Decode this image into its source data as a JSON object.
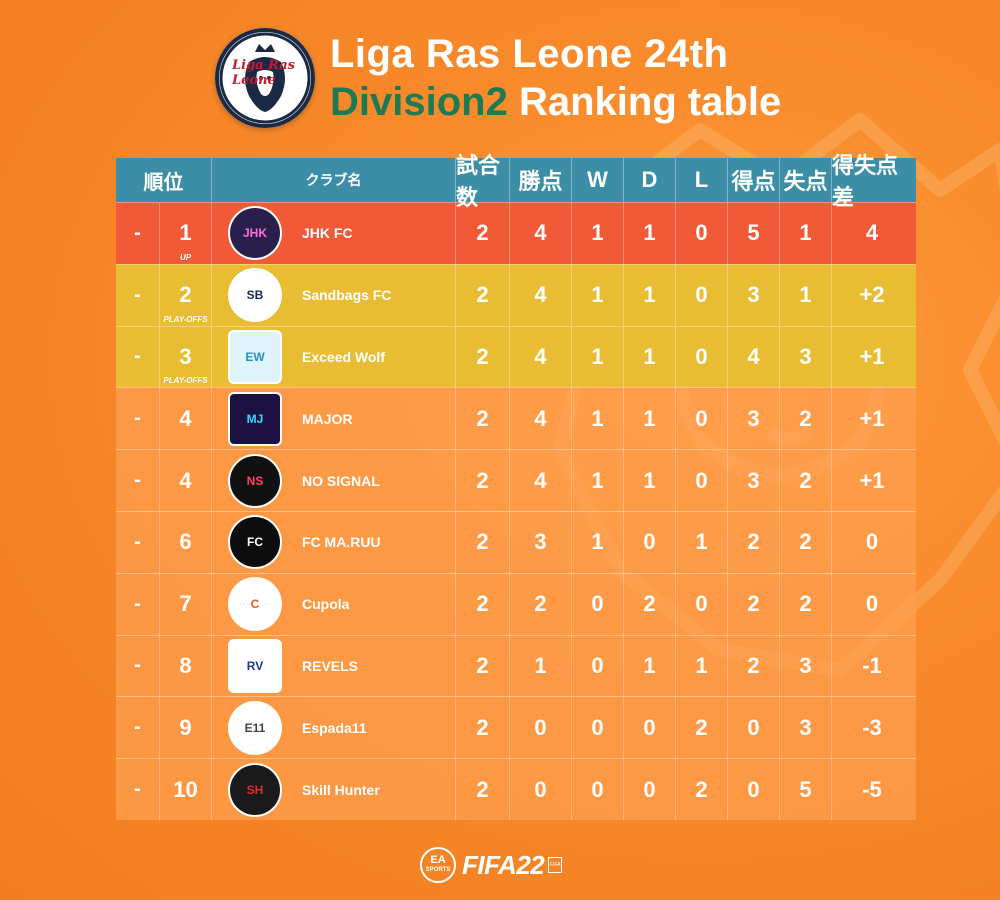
{
  "header": {
    "logo_text": "Liga Ras Leone",
    "title_line1": "Liga Ras Leone 24th",
    "title_line2_accent": "Division2",
    "title_line2_rest": " Ranking table"
  },
  "colors": {
    "background": "#f7892a",
    "header_row": "#3b8ea5",
    "promotion_row": "#f05a36",
    "playoff_row": "#e9bd33",
    "accent_title": "#1e7a53"
  },
  "columns": {
    "rank": "順位",
    "club": "クラブ名",
    "played": "試合数",
    "points": "勝点",
    "w": "W",
    "d": "D",
    "l": "L",
    "gf": "得点",
    "ga": "失点",
    "gd": "得失点差"
  },
  "rows": [
    {
      "move": "-",
      "rank": "1",
      "tag": "UP",
      "badge_icon": "jhk-fc-crest-icon",
      "club": "JHK FC",
      "played": "2",
      "points": "4",
      "w": "1",
      "d": "1",
      "l": "0",
      "gf": "5",
      "ga": "1",
      "gd": "4",
      "zone": "promotion"
    },
    {
      "move": "-",
      "rank": "2",
      "tag": "PLAY-OFFS",
      "badge_icon": "sandbags-fc-crest-icon",
      "club": "Sandbags FC",
      "played": "2",
      "points": "4",
      "w": "1",
      "d": "1",
      "l": "0",
      "gf": "3",
      "ga": "1",
      "gd": "+2",
      "zone": "playoff"
    },
    {
      "move": "-",
      "rank": "3",
      "tag": "PLAY-OFFS",
      "badge_icon": "exceed-wolf-crest-icon",
      "club": "Exceed Wolf",
      "played": "2",
      "points": "4",
      "w": "1",
      "d": "1",
      "l": "0",
      "gf": "4",
      "ga": "3",
      "gd": "+1",
      "zone": "playoff"
    },
    {
      "move": "-",
      "rank": "4",
      "tag": "",
      "badge_icon": "major-crest-icon",
      "club": "MAJOR",
      "played": "2",
      "points": "4",
      "w": "1",
      "d": "1",
      "l": "0",
      "gf": "3",
      "ga": "2",
      "gd": "+1",
      "zone": "normal"
    },
    {
      "move": "-",
      "rank": "4",
      "tag": "",
      "badge_icon": "no-signal-crest-icon",
      "club": "NO SIGNAL",
      "played": "2",
      "points": "4",
      "w": "1",
      "d": "1",
      "l": "0",
      "gf": "3",
      "ga": "2",
      "gd": "+1",
      "zone": "normal"
    },
    {
      "move": "-",
      "rank": "6",
      "tag": "",
      "badge_icon": "fc-maruu-crest-icon",
      "club": "FC MA.RUU",
      "played": "2",
      "points": "3",
      "w": "1",
      "d": "0",
      "l": "1",
      "gf": "2",
      "ga": "2",
      "gd": "0",
      "zone": "normal"
    },
    {
      "move": "-",
      "rank": "7",
      "tag": "",
      "badge_icon": "cupola-crest-icon",
      "club": "Cupola",
      "played": "2",
      "points": "2",
      "w": "0",
      "d": "2",
      "l": "0",
      "gf": "2",
      "ga": "2",
      "gd": "0",
      "zone": "normal"
    },
    {
      "move": "-",
      "rank": "8",
      "tag": "",
      "badge_icon": "revels-crest-icon",
      "club": "REVELS",
      "played": "2",
      "points": "1",
      "w": "0",
      "d": "1",
      "l": "1",
      "gf": "2",
      "ga": "3",
      "gd": "-1",
      "zone": "normal"
    },
    {
      "move": "-",
      "rank": "9",
      "tag": "",
      "badge_icon": "espada11-crest-icon",
      "club": "Espada11",
      "played": "2",
      "points": "0",
      "w": "0",
      "d": "0",
      "l": "2",
      "gf": "0",
      "ga": "3",
      "gd": "-3",
      "zone": "normal"
    },
    {
      "move": "-",
      "rank": "10",
      "tag": "",
      "badge_icon": "skill-hunter-crest-icon",
      "club": "Skill Hunter",
      "played": "2",
      "points": "0",
      "w": "0",
      "d": "0",
      "l": "2",
      "gf": "0",
      "ga": "5",
      "gd": "-5",
      "zone": "normal"
    }
  ],
  "footer": {
    "ea_top": "EA",
    "ea_bottom": "SPORTS",
    "fifa": "FIFA22",
    "fifa_mark": "FIFA"
  }
}
